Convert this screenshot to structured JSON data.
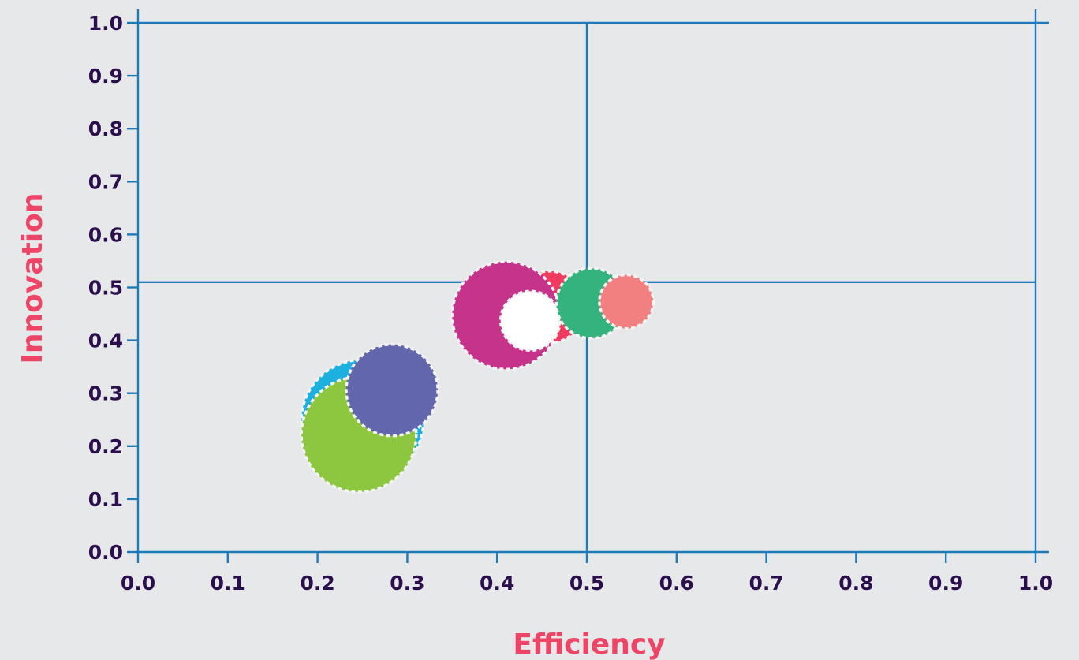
{
  "chart_data": {
    "type": "scatter",
    "title": "",
    "xlabel": "Efficiency",
    "ylabel": "Innovation",
    "xlim": [
      0.0,
      1.0
    ],
    "ylim": [
      0.0,
      1.0
    ],
    "x_ticks": [
      "0.0",
      "0.1",
      "0.2",
      "0.3",
      "0.4",
      "0.5",
      "0.6",
      "0.7",
      "0.8",
      "0.9",
      "1.0"
    ],
    "y_ticks": [
      "0.0",
      "0.1",
      "0.2",
      "0.3",
      "0.4",
      "0.5",
      "0.6",
      "0.7",
      "0.8",
      "0.9",
      "1.0"
    ],
    "quadrant_lines": {
      "x": 0.5,
      "y": 0.51
    },
    "grid": false,
    "legend": "none",
    "points": [
      {
        "x": 0.25,
        "y": 0.248,
        "size": 0.068,
        "color": "#1bb0e0"
      },
      {
        "x": 0.246,
        "y": 0.222,
        "size": 0.064,
        "color": "#8dc63f"
      },
      {
        "x": 0.283,
        "y": 0.306,
        "size": 0.051,
        "color": "#6266ad"
      },
      {
        "x": 0.458,
        "y": 0.463,
        "size": 0.04,
        "color": "#f03a5f"
      },
      {
        "x": 0.41,
        "y": 0.447,
        "size": 0.06,
        "color": "#c6338b"
      },
      {
        "x": 0.437,
        "y": 0.437,
        "size": 0.033,
        "color": "#ffffff"
      },
      {
        "x": 0.505,
        "y": 0.47,
        "size": 0.039,
        "color": "#35b37e"
      },
      {
        "x": 0.544,
        "y": 0.473,
        "size": 0.03,
        "color": "#f28080"
      }
    ]
  }
}
